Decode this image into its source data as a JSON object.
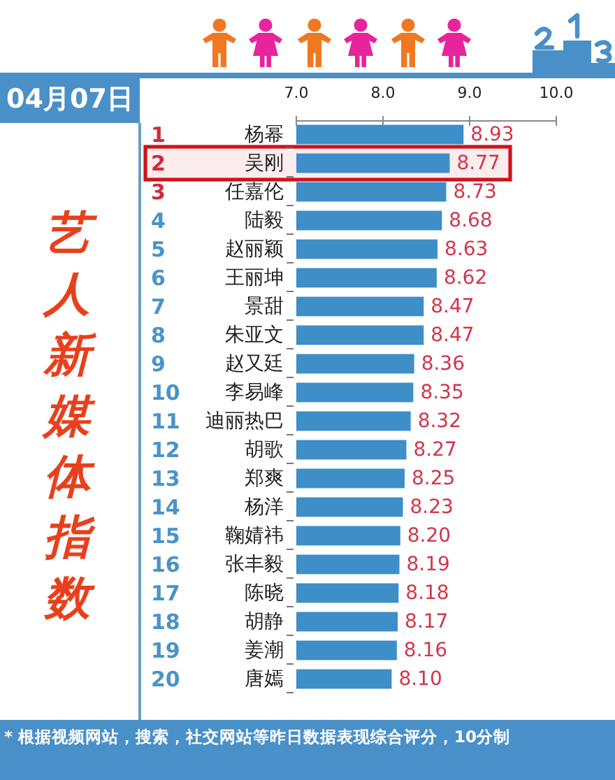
{
  "chart_data": {
    "type": "bar",
    "orientation": "horizontal",
    "title": "艺人新媒体指数",
    "subtitle": "04月07日",
    "categories": [
      "1 杨幂",
      "2 吴刚",
      "3 任嘉伦",
      "4 陆毅",
      "5 赵丽颖",
      "6 王丽坤",
      "7 景甜",
      "8 朱亚文",
      "9 赵又廷",
      "10 李易峰",
      "11 迪丽热巴",
      "12 胡歌",
      "13 郑爽",
      "14 杨洋",
      "15 鞠婧祎",
      "16 张丰毅",
      "17 陈晓",
      "18 胡静",
      "19 姜潮",
      "20 唐嫣"
    ],
    "values": [
      8.93,
      8.77,
      8.73,
      8.68,
      8.63,
      8.62,
      8.47,
      8.47,
      8.36,
      8.35,
      8.32,
      8.27,
      8.25,
      8.23,
      8.2,
      8.19,
      8.18,
      8.17,
      8.16,
      8.1
    ],
    "value_labels": [
      "8.93",
      "8.77",
      "8.73",
      "8.68",
      "8.63",
      "8.62",
      "8.47",
      "8.47",
      "8.36",
      "8.35",
      "8.32",
      "8.27",
      "8.25",
      "8.23",
      "8.20",
      "8.19",
      "8.18",
      "8.17",
      "8.16",
      "8.10"
    ],
    "color": "#3e8ec8",
    "xlim": [
      7,
      10
    ],
    "xticks": [
      {
        "value": 7,
        "label": "7.0"
      },
      {
        "value": 8,
        "label": "8.0"
      },
      {
        "value": 9,
        "label": "9.0"
      },
      {
        "value": 10,
        "label": "10.0"
      }
    ],
    "bands": [
      {
        "axis": "y",
        "from": "2 吴刚",
        "to": "2 吴刚",
        "color": "#d0121b"
      }
    ],
    "annotations": [
      "* 根据视频网站，搜索，社交网站等昨日数据表现综合评分，10分制"
    ]
  }
}
